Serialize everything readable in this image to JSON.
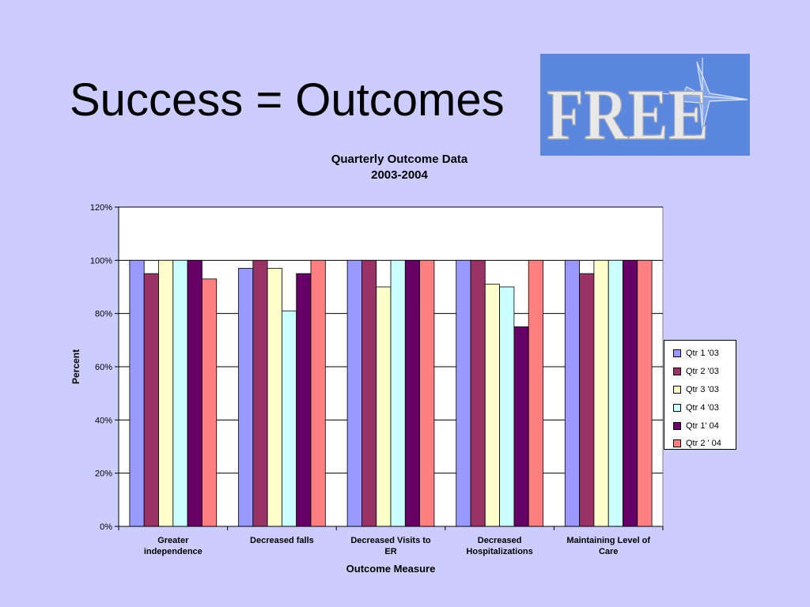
{
  "slide": {
    "title": "Success = Outcomes"
  },
  "logo": {
    "text": "FREE",
    "colors": {
      "background": "#5b88de",
      "letters": "#e8e8e8"
    }
  },
  "chart_data": {
    "type": "bar",
    "title": "Quarterly Outcome Data",
    "subtitle": "2003-2004",
    "xlabel": "Outcome Measure",
    "ylabel": "Percent",
    "ylim": [
      0,
      120
    ],
    "yticks": [
      "0%",
      "20%",
      "40%",
      "60%",
      "80%",
      "100%",
      "120%"
    ],
    "grid": true,
    "legend_position": "right",
    "categories": [
      [
        "Greater",
        "independence"
      ],
      [
        "Decreased falls"
      ],
      [
        "Decreased Visits to",
        "ER"
      ],
      [
        "Decreased",
        "Hospitalizations"
      ],
      [
        "Maintaining Level of",
        "Care"
      ]
    ],
    "series": [
      {
        "name": "Qtr 1 '03",
        "color": "#9999ff",
        "values": [
          100,
          97,
          100,
          100,
          100
        ]
      },
      {
        "name": "Qtr 2 '03",
        "color": "#993366",
        "values": [
          95,
          100,
          100,
          100,
          95
        ]
      },
      {
        "name": "Qtr 3 '03",
        "color": "#ffffcc",
        "values": [
          100,
          97,
          90,
          91,
          100
        ]
      },
      {
        "name": "Qtr 4 '03",
        "color": "#ccffff",
        "values": [
          100,
          81,
          100,
          90,
          100
        ]
      },
      {
        "name": "Qtr 1' 04",
        "color": "#660066",
        "values": [
          100,
          95,
          100,
          75,
          100
        ]
      },
      {
        "name": "Qtr 2 ' 04",
        "color": "#ff8080",
        "values": [
          93,
          100,
          100,
          100,
          100
        ]
      }
    ]
  }
}
